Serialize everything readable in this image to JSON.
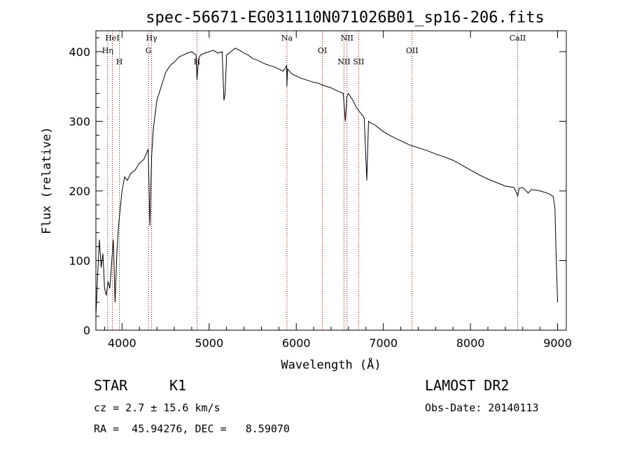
{
  "chart_data": {
    "type": "line",
    "title": "spec-56671-EG031110N071026B01_sp16-206.fits",
    "xlabel": "Wavelength (Å)",
    "ylabel": "Flux (relative)",
    "xlim": [
      3700,
      9100
    ],
    "ylim": [
      0,
      430
    ],
    "xticks": [
      4000,
      5000,
      6000,
      7000,
      8000,
      9000
    ],
    "yticks": [
      0,
      100,
      200,
      300,
      400
    ],
    "grid": false,
    "series": [
      {
        "x": [
          3700,
          3720,
          3740,
          3760,
          3780,
          3800,
          3820,
          3840,
          3860,
          3880,
          3900,
          3920,
          3940,
          3960,
          3980,
          4000,
          4030,
          4060,
          4100,
          4150,
          4200,
          4250,
          4300,
          4320,
          4340,
          4360,
          4400,
          4450,
          4500,
          4550,
          4600,
          4650,
          4700,
          4750,
          4800,
          4850,
          4860,
          4880,
          4900,
          4950,
          5000,
          5050,
          5100,
          5150,
          5170,
          5183,
          5200,
          5250,
          5300,
          5350,
          5400,
          5450,
          5500,
          5550,
          5600,
          5650,
          5700,
          5750,
          5800,
          5850,
          5890,
          5893,
          5900,
          5950,
          6000,
          6050,
          6100,
          6150,
          6200,
          6250,
          6300,
          6350,
          6400,
          6450,
          6500,
          6540,
          6563,
          6580,
          6600,
          6650,
          6700,
          6750,
          6780,
          6810,
          6830,
          6850,
          6900,
          6950,
          7000,
          7100,
          7200,
          7300,
          7400,
          7500,
          7600,
          7700,
          7800,
          7900,
          8000,
          8100,
          8200,
          8300,
          8400,
          8500,
          8542,
          8560,
          8600,
          8662,
          8700,
          8800,
          8900,
          8950,
          8970,
          8980,
          8990,
          9000
        ],
        "values": [
          20,
          80,
          130,
          90,
          110,
          60,
          50,
          70,
          60,
          95,
          130,
          40,
          110,
          150,
          175,
          200,
          220,
          215,
          225,
          230,
          240,
          245,
          260,
          150,
          250,
          290,
          330,
          350,
          370,
          380,
          385,
          392,
          395,
          398,
          400,
          395,
          360,
          390,
          395,
          398,
          400,
          402,
          398,
          400,
          330,
          340,
          395,
          400,
          405,
          402,
          398,
          395,
          390,
          388,
          385,
          382,
          380,
          378,
          375,
          372,
          380,
          350,
          375,
          368,
          365,
          362,
          360,
          358,
          356,
          355,
          352,
          350,
          348,
          345,
          342,
          340,
          300,
          335,
          340,
          330,
          318,
          310,
          305,
          215,
          300,
          298,
          295,
          290,
          285,
          278,
          272,
          266,
          262,
          258,
          253,
          249,
          244,
          237,
          230,
          223,
          217,
          212,
          207,
          205,
          193,
          204,
          205,
          197,
          202,
          200,
          196,
          192,
          175,
          120,
          80,
          40
        ]
      }
    ],
    "line_marks": [
      {
        "label": "HeI",
        "x": 3889
      },
      {
        "label": "Hη",
        "x": 3835
      },
      {
        "label": "H",
        "x": 3970
      },
      {
        "label": "Hγ",
        "x": 4340
      },
      {
        "label": "G",
        "x": 4304
      },
      {
        "label": "H",
        "x": 4861
      },
      {
        "label": "Na",
        "x": 5893
      },
      {
        "label": "OI",
        "x": 6300
      },
      {
        "label": "NII",
        "x": 6548
      },
      {
        "label": "NII",
        "x": 6583
      },
      {
        "label": "OII",
        "x": 7330
      },
      {
        "label": "SII",
        "x": 6716
      },
      {
        "label": "CaII",
        "x": 8542
      }
    ]
  },
  "info": {
    "class": "STAR",
    "subclass": "K1",
    "survey": "LAMOST DR2",
    "cz": "cz = 2.7 ± 15.6 km/s",
    "obs_date": "Obs-Date: 20140113",
    "coords": "RA =  45.94276, DEC =   8.59070"
  },
  "colors": {
    "spectrum": "#000000",
    "line_marker": "#8b0000"
  }
}
